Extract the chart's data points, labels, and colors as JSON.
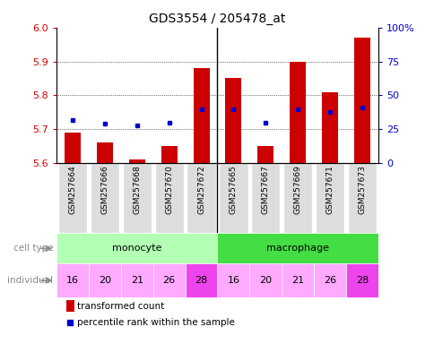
{
  "title": "GDS3554 / 205478_at",
  "samples": [
    "GSM257664",
    "GSM257666",
    "GSM257668",
    "GSM257670",
    "GSM257672",
    "GSM257665",
    "GSM257667",
    "GSM257669",
    "GSM257671",
    "GSM257673"
  ],
  "transformed_counts": [
    5.69,
    5.66,
    5.61,
    5.65,
    5.88,
    5.85,
    5.65,
    5.9,
    5.81,
    5.97
  ],
  "percentile_ranks": [
    32,
    29,
    28,
    30,
    40,
    40,
    30,
    40,
    38,
    41
  ],
  "ylim_left": [
    5.6,
    6.0
  ],
  "ylim_right": [
    0,
    100
  ],
  "yticks_left": [
    5.6,
    5.7,
    5.8,
    5.9,
    6.0
  ],
  "yticks_right": [
    0,
    25,
    50,
    75,
    100
  ],
  "ytick_labels_right": [
    "0",
    "25",
    "50",
    "75",
    "100%"
  ],
  "bar_color": "#cc0000",
  "dot_color": "#0000cc",
  "individuals": [
    "16",
    "20",
    "21",
    "26",
    "28",
    "16",
    "20",
    "21",
    "26",
    "28"
  ],
  "monocyte_color": "#b3ffb3",
  "macrophage_color": "#44dd44",
  "individual_colors": [
    "#ffaaff",
    "#ffaaff",
    "#ffaaff",
    "#ffaaff",
    "#ee44ee",
    "#ffaaff",
    "#ffaaff",
    "#ffaaff",
    "#ffaaff",
    "#ee44ee"
  ],
  "sample_bg_color": "#dddddd",
  "legend_bar_label": "transformed count",
  "legend_dot_label": "percentile rank within the sample",
  "left_axis_color": "#cc0000",
  "right_axis_color": "#0000cc",
  "label_color": "#888888"
}
